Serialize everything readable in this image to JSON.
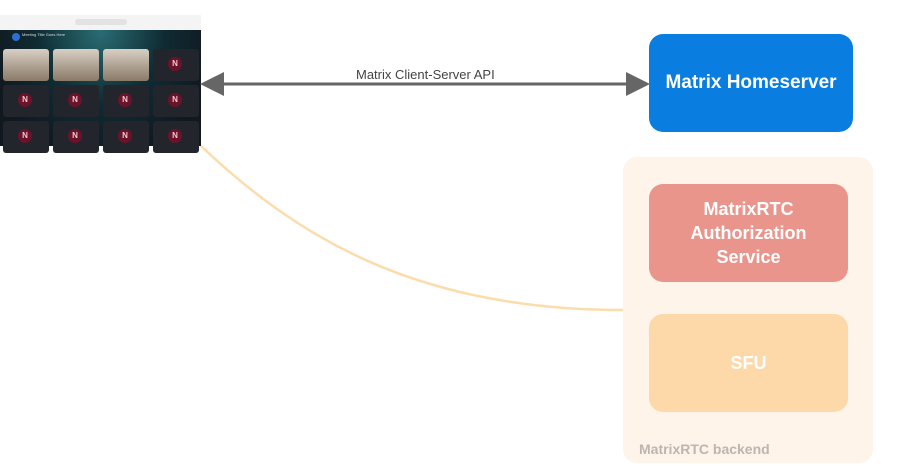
{
  "diagram": {
    "client_screenshot": {
      "meeting_title": "Meeting Title Goes Here",
      "avatar_letter": "N"
    },
    "edges": {
      "client_server": "Matrix Client-Server API"
    },
    "nodes": {
      "homeserver": "Matrix Homeserver",
      "auth_service": "MatrixRTC Authorization Service",
      "sfu": "SFU",
      "backend_group": "MatrixRTC backend"
    },
    "colors": {
      "homeserver": "#0a7ee0",
      "auth_service": "#ea958c",
      "sfu": "#fdd8a8",
      "backend_group": "#fff4ea",
      "connection": "#fcdcab",
      "api_arrow": "#666666"
    }
  }
}
